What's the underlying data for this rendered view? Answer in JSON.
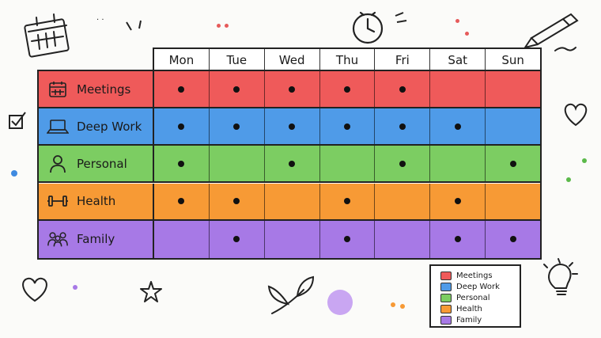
{
  "days": [
    "Mon",
    "Tue",
    "Wed",
    "Thu",
    "Fri",
    "Sat",
    "Sun"
  ],
  "categories": [
    {
      "name": "Meetings",
      "icon": "calendar-icon",
      "color": "#ef5a5a",
      "dots": [
        1,
        1,
        1,
        1,
        1,
        0,
        0
      ]
    },
    {
      "name": "Deep Work",
      "icon": "laptop-icon",
      "color": "#4f9be8",
      "dots": [
        1,
        1,
        1,
        1,
        1,
        1,
        0
      ]
    },
    {
      "name": "Personal",
      "icon": "person-icon",
      "color": "#7ccd62",
      "dots": [
        1,
        0,
        1,
        0,
        1,
        0,
        1
      ]
    },
    {
      "name": "Health",
      "icon": "dumbbell-icon",
      "color": "#f79a35",
      "dots": [
        1,
        1,
        0,
        1,
        0,
        1,
        0
      ]
    },
    {
      "name": "Family",
      "icon": "family-icon",
      "color": "#a779e6",
      "dots": [
        0,
        1,
        0,
        1,
        0,
        1,
        1
      ]
    }
  ],
  "legend": [
    {
      "label": "Meetings",
      "color": "#ef5a5a"
    },
    {
      "label": "Deep Work",
      "color": "#4f9be8"
    },
    {
      "label": "Personal",
      "color": "#7ccd62"
    },
    {
      "label": "Health",
      "color": "#f79a35"
    },
    {
      "label": "Family",
      "color": "#a779e6"
    }
  ]
}
